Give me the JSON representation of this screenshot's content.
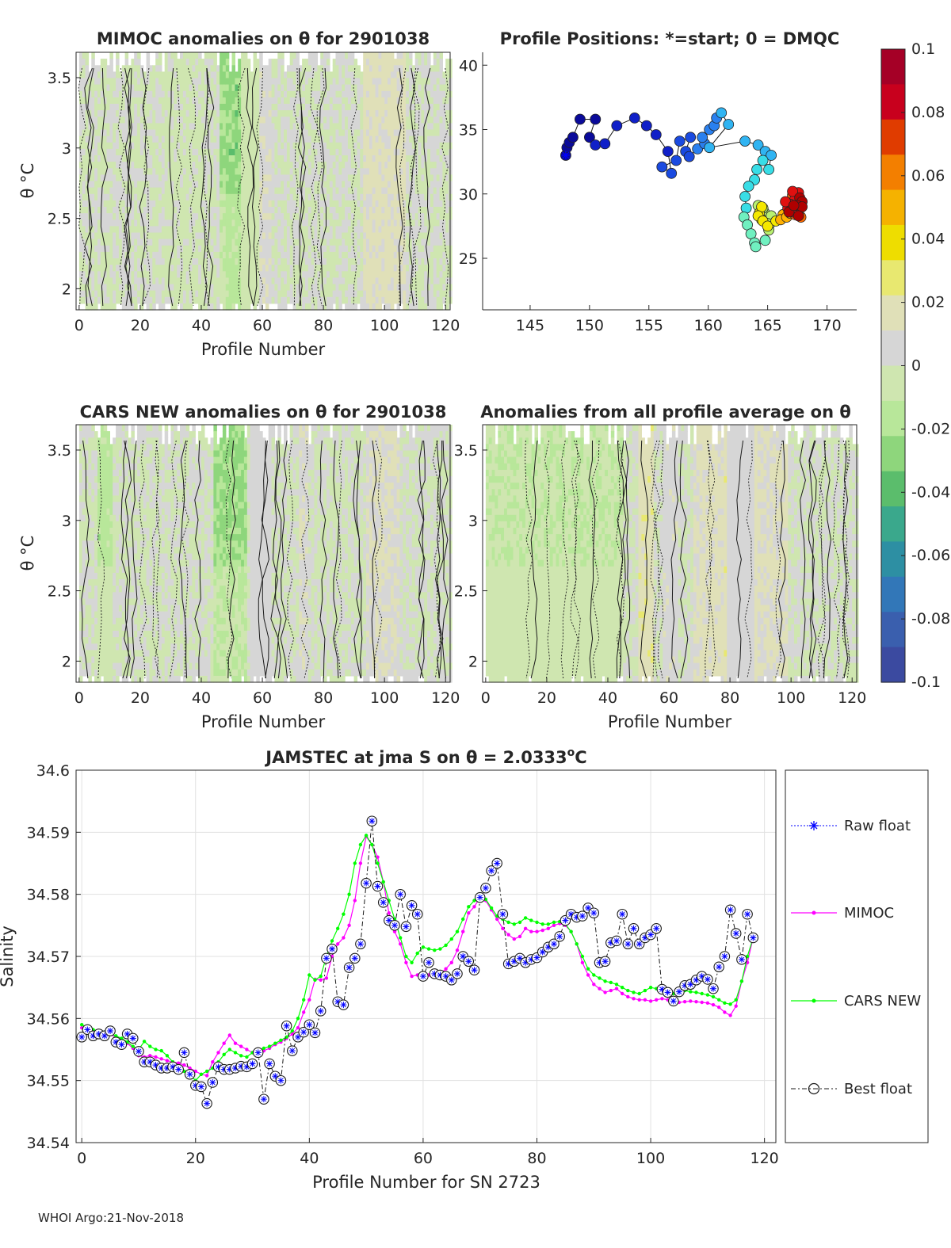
{
  "footer": "WHOI Argo:21-Nov-2018",
  "chart_data": [
    {
      "id": "mimoc",
      "type": "heatmap",
      "title": "MIMOC anomalies on θ  for 2901038",
      "xlabel": "Profile Number",
      "ylabel": "θ °C",
      "xlim": [
        -1,
        121.5
      ],
      "ylim": [
        1.85,
        3.68
      ],
      "xticks": [
        "0",
        "20",
        "40",
        "60",
        "80",
        "100",
        "120"
      ],
      "yticks": [
        "2",
        "2.5",
        "3",
        "3.5"
      ],
      "warm_bands": [
        [
          48,
          58,
          -0.006
        ],
        [
          59,
          62,
          0.012
        ],
        [
          93,
          106,
          0.016
        ],
        [
          28,
          40,
          -0.002
        ]
      ],
      "cool_bands": [
        [
          46,
          52,
          -0.028
        ]
      ]
    },
    {
      "id": "positions",
      "type": "scatter",
      "title": "Profile Positions: *=start; 0 = DMQC",
      "xlim": [
        141,
        172.5
      ],
      "ylim": [
        21,
        41
      ],
      "xticks": [
        "145",
        "150",
        "155",
        "160",
        "165",
        "170"
      ],
      "yticks": [
        "25",
        "30",
        "35",
        "40"
      ],
      "track": [
        [
          148.0,
          33.0
        ],
        [
          148.1,
          33.6
        ],
        [
          148.3,
          34.0
        ],
        [
          148.6,
          34.4
        ],
        [
          149.2,
          35.8
        ],
        [
          150.5,
          35.8
        ],
        [
          150.0,
          34.4
        ],
        [
          150.5,
          33.8
        ],
        [
          151.3,
          33.9
        ],
        [
          152.3,
          35.3
        ],
        [
          153.8,
          35.9
        ],
        [
          154.8,
          35.3
        ],
        [
          155.6,
          34.6
        ],
        [
          156.6,
          33.3
        ],
        [
          156.9,
          31.6
        ],
        [
          156.1,
          32.1
        ],
        [
          157.3,
          32.6
        ],
        [
          157.6,
          34.1
        ],
        [
          158.5,
          34.4
        ],
        [
          158.1,
          33.3
        ],
        [
          158.4,
          32.9
        ],
        [
          159.1,
          33.5
        ],
        [
          159.7,
          33.9
        ],
        [
          159.5,
          34.4
        ],
        [
          160.1,
          35.0
        ],
        [
          160.5,
          35.3
        ],
        [
          160.7,
          35.9
        ],
        [
          161.1,
          36.3
        ],
        [
          161.7,
          35.4
        ],
        [
          160.1,
          33.6
        ],
        [
          163.1,
          34.1
        ],
        [
          164.2,
          33.8
        ],
        [
          164.8,
          33.3
        ],
        [
          165.3,
          33.0
        ],
        [
          165.1,
          31.9
        ],
        [
          164.6,
          32.6
        ],
        [
          164.1,
          31.9
        ],
        [
          163.9,
          31.1
        ],
        [
          163.4,
          30.6
        ],
        [
          163.1,
          29.8
        ],
        [
          163.2,
          28.9
        ],
        [
          163.0,
          28.2
        ],
        [
          163.3,
          27.6
        ],
        [
          163.6,
          26.9
        ],
        [
          163.9,
          26.2
        ],
        [
          164.0,
          25.9
        ],
        [
          164.8,
          26.4
        ],
        [
          165.1,
          27.2
        ],
        [
          165.2,
          27.7
        ],
        [
          164.7,
          28.6
        ],
        [
          164.2,
          29.1
        ],
        [
          164.6,
          28.9
        ],
        [
          165.3,
          28.3
        ],
        [
          165.0,
          27.7
        ],
        [
          164.5,
          28.0
        ],
        [
          164.3,
          28.5
        ],
        [
          164.5,
          29.0
        ],
        [
          164.2,
          28.3
        ],
        [
          164.6,
          27.9
        ],
        [
          165.0,
          27.5
        ],
        [
          165.7,
          27.9
        ],
        [
          166.3,
          28.4
        ],
        [
          166.1,
          28.0
        ],
        [
          166.6,
          28.2
        ],
        [
          166.9,
          28.5
        ],
        [
          167.1,
          28.8
        ],
        [
          167.4,
          29.1
        ],
        [
          167.6,
          28.8
        ],
        [
          167.3,
          28.4
        ],
        [
          167.8,
          28.2
        ],
        [
          167.6,
          28.6
        ],
        [
          167.7,
          29.0
        ],
        [
          167.4,
          29.4
        ],
        [
          167.1,
          29.9
        ],
        [
          167.6,
          30.1
        ],
        [
          167.3,
          29.6
        ],
        [
          166.9,
          29.2
        ],
        [
          167.1,
          28.6
        ],
        [
          166.7,
          28.9
        ],
        [
          166.5,
          29.4
        ],
        [
          167.1,
          30.2
        ],
        [
          167.7,
          29.7
        ],
        [
          167.9,
          29.4
        ],
        [
          167.5,
          29.1
        ],
        [
          167.9,
          29.0
        ],
        [
          167.6,
          28.3
        ],
        [
          166.8,
          28.6
        ],
        [
          167.2,
          29.1
        ]
      ]
    },
    {
      "id": "colorbar",
      "type": "colorbar",
      "ticks": [
        "0.1",
        "0.08",
        "0.06",
        "0.04",
        "0.02",
        "0",
        "-0.02",
        "-0.04",
        "-0.06",
        "-0.08",
        "-0.1"
      ],
      "colors": [
        "#a50026",
        "#c8001d",
        "#e03c00",
        "#f37f00",
        "#f5b200",
        "#eedd00",
        "#e8e870",
        "#e0e0b8",
        "#d6d6d6",
        "#cfe6b0",
        "#b8e79a",
        "#8ed67c",
        "#5bbd6c",
        "#3aa88c",
        "#2d8fa3",
        "#3277b8",
        "#3a5fae",
        "#3b4aa0"
      ]
    },
    {
      "id": "cars",
      "type": "heatmap",
      "title": "CARS NEW anomalies on θ for 2901038",
      "xlabel": "Profile Number",
      "ylabel": "θ °C",
      "xlim": [
        -1,
        121.5
      ],
      "ylim": [
        1.85,
        3.68
      ],
      "xticks": [
        "0",
        "20",
        "40",
        "60",
        "80",
        "100",
        "120"
      ],
      "yticks": [
        "2",
        "2.5",
        "3",
        "3.5"
      ],
      "warm_bands": [
        [
          56,
          62,
          0.008
        ],
        [
          72,
          74,
          0.012
        ],
        [
          94,
          104,
          0.014
        ]
      ],
      "cool_bands": [
        [
          44,
          54,
          -0.032
        ],
        [
          6,
          10,
          -0.02
        ]
      ]
    },
    {
      "id": "avg",
      "type": "heatmap",
      "title": "Anomalies from all profile average on θ",
      "xlabel": "Profile Number",
      "xlim": [
        -1,
        121.5
      ],
      "ylim": [
        1.85,
        3.68
      ],
      "xticks": [
        "0",
        "20",
        "40",
        "60",
        "80",
        "100",
        "120"
      ],
      "yticks": [
        "2",
        "2.5",
        "3",
        "3.5"
      ],
      "warm_bands": [
        [
          50,
          54,
          0.022
        ],
        [
          58,
          62,
          0.01
        ],
        [
          68,
          78,
          0.016
        ],
        [
          88,
          98,
          0.014
        ],
        [
          78,
          88,
          0.006
        ]
      ],
      "cool_bands": [
        [
          0,
          44,
          -0.014
        ]
      ]
    },
    {
      "id": "salinity",
      "type": "line",
      "title": "JAMSTEC at jma S on θ = 2.0333",
      "title_sup": "o",
      "title_end": "C",
      "xlabel": "Profile Number for SN 2723",
      "ylabel": "Salinity",
      "xlim": [
        -1,
        122
      ],
      "ylim": [
        34.54,
        34.6
      ],
      "xticks": [
        "0",
        "20",
        "40",
        "60",
        "80",
        "100",
        "120"
      ],
      "yticks": [
        "34.6",
        "34.59",
        "34.58",
        "34.57",
        "34.56",
        "34.55",
        "34.54"
      ],
      "legend": [
        "Raw float",
        "MIMOC",
        "CARS NEW",
        "Best float"
      ],
      "series": [
        {
          "name": "Raw float / Best float",
          "color": "#1a1a1a",
          "values": [
            34.557,
            34.5582,
            34.5572,
            34.5575,
            34.5572,
            34.558,
            34.5562,
            34.5558,
            34.5575,
            34.5568,
            34.5547,
            34.553,
            34.553,
            34.5525,
            34.552,
            34.552,
            34.5522,
            34.5518,
            34.5545,
            34.551,
            34.5492,
            34.549,
            34.5463,
            34.5497,
            34.5522,
            34.5518,
            34.5518,
            34.552,
            34.5523,
            34.5522,
            34.5527,
            34.5545,
            34.547,
            34.5527,
            34.5507,
            34.55,
            34.5588,
            34.5548,
            34.557,
            34.5578,
            34.559,
            34.5577,
            34.5612,
            34.5697,
            34.5712,
            34.5627,
            34.5622,
            34.5682,
            34.5697,
            34.572,
            34.5818,
            34.5918,
            34.5813,
            34.5787,
            34.5758,
            34.575,
            34.58,
            34.5748,
            34.5782,
            34.5768,
            34.5668,
            34.569,
            34.5672,
            34.567,
            34.5668,
            34.5662,
            34.5672,
            34.57,
            34.5692,
            34.5678,
            34.5795,
            34.581,
            34.5838,
            34.585,
            34.5768,
            34.5688,
            34.5692,
            34.5697,
            34.569,
            34.5695,
            34.5698,
            34.5707,
            34.5715,
            34.572,
            34.5732,
            34.5758,
            34.5768,
            34.5763,
            34.5765,
            34.5778,
            34.577,
            34.569,
            34.5692,
            34.5722,
            34.5725,
            34.5768,
            34.572,
            34.5745,
            34.572,
            34.573,
            34.5735,
            34.5745,
            34.5647,
            34.5642,
            34.5628,
            34.5643,
            34.5653,
            34.5655,
            34.5662,
            34.5668,
            34.5663,
            34.5648,
            34.5683,
            34.57,
            34.5775,
            34.5737,
            34.5695,
            34.5768,
            34.573
          ]
        },
        {
          "name": "MIMOC",
          "color": "#ff00ff",
          "values": [
            34.5585,
            34.5582,
            34.558,
            34.5579,
            34.5578,
            34.5574,
            34.557,
            34.5565,
            34.556,
            34.5552,
            34.554,
            34.5538,
            34.554,
            34.5538,
            34.5535,
            34.5532,
            34.553,
            34.5528,
            34.5525,
            34.552,
            34.5515,
            34.551,
            34.5508,
            34.553,
            34.5545,
            34.556,
            34.5573,
            34.556,
            34.5555,
            34.555,
            34.5545,
            34.5545,
            34.5548,
            34.5552,
            34.5558,
            34.5562,
            34.5568,
            34.5575,
            34.5585,
            34.561,
            34.563,
            34.5663,
            34.5662,
            34.5665,
            34.57,
            34.572,
            34.573,
            34.575,
            34.579,
            34.585,
            34.5893,
            34.588,
            34.586,
            34.582,
            34.577,
            34.574,
            34.572,
            34.569,
            34.5668,
            34.567,
            34.5672,
            34.567,
            34.5668,
            34.5672,
            34.568,
            34.569,
            34.571,
            34.574,
            34.577,
            34.578,
            34.5795,
            34.579,
            34.5775,
            34.576,
            34.5745,
            34.5735,
            34.5728,
            34.5732,
            34.5745,
            34.574,
            34.574,
            34.5742,
            34.5745,
            34.575,
            34.5753,
            34.575,
            34.574,
            34.572,
            34.569,
            34.567,
            34.5655,
            34.5648,
            34.5642,
            34.5645,
            34.5648,
            34.564,
            34.5635,
            34.5632,
            34.563,
            34.563,
            34.5628,
            34.563,
            34.5632,
            34.563,
            34.5628,
            34.5626,
            34.5627,
            34.5628,
            34.5627,
            34.5626,
            34.5625,
            34.5622,
            34.5618,
            34.561,
            34.5605,
            34.562,
            34.566,
            34.569,
            34.573
          ]
        },
        {
          "name": "CARS NEW",
          "color": "#00ff00",
          "values": [
            34.559,
            34.5585,
            34.5582,
            34.558,
            34.5578,
            34.5576,
            34.5572,
            34.5568,
            34.5562,
            34.5555,
            34.555,
            34.5563,
            34.5555,
            34.555,
            34.5548,
            34.554,
            34.553,
            34.552,
            34.5515,
            34.551,
            34.55,
            34.551,
            34.5515,
            34.552,
            34.553,
            34.5542,
            34.555,
            34.5545,
            34.554,
            34.5538,
            34.5545,
            34.5548,
            34.5552,
            34.5555,
            34.556,
            34.5565,
            34.557,
            34.558,
            34.56,
            34.563,
            34.567,
            34.5662,
            34.5668,
            34.57,
            34.5725,
            34.5745,
            34.5768,
            34.58,
            34.585,
            34.588,
            34.5895,
            34.588,
            34.585,
            34.582,
            34.579,
            34.576,
            34.573,
            34.57,
            34.569,
            34.5705,
            34.5715,
            34.5712,
            34.571,
            34.5712,
            34.5718,
            34.5728,
            34.574,
            34.576,
            34.578,
            34.579,
            34.58,
            34.5792,
            34.5778,
            34.5765,
            34.576,
            34.5755,
            34.5752,
            34.5755,
            34.5762,
            34.5758,
            34.5755,
            34.5752,
            34.5752,
            34.5755,
            34.5756,
            34.5752,
            34.574,
            34.572,
            34.57,
            34.568,
            34.567,
            34.5665,
            34.566,
            34.5658,
            34.5655,
            34.565,
            34.5645,
            34.5642,
            34.564,
            34.5645,
            34.565,
            34.5648,
            34.5645,
            34.5642,
            34.564,
            34.5642,
            34.5645,
            34.5643,
            34.5642,
            34.564,
            34.5638,
            34.5635,
            34.563,
            34.5625,
            34.5623,
            34.563,
            34.566,
            34.57,
            34.573
          ]
        }
      ]
    }
  ]
}
